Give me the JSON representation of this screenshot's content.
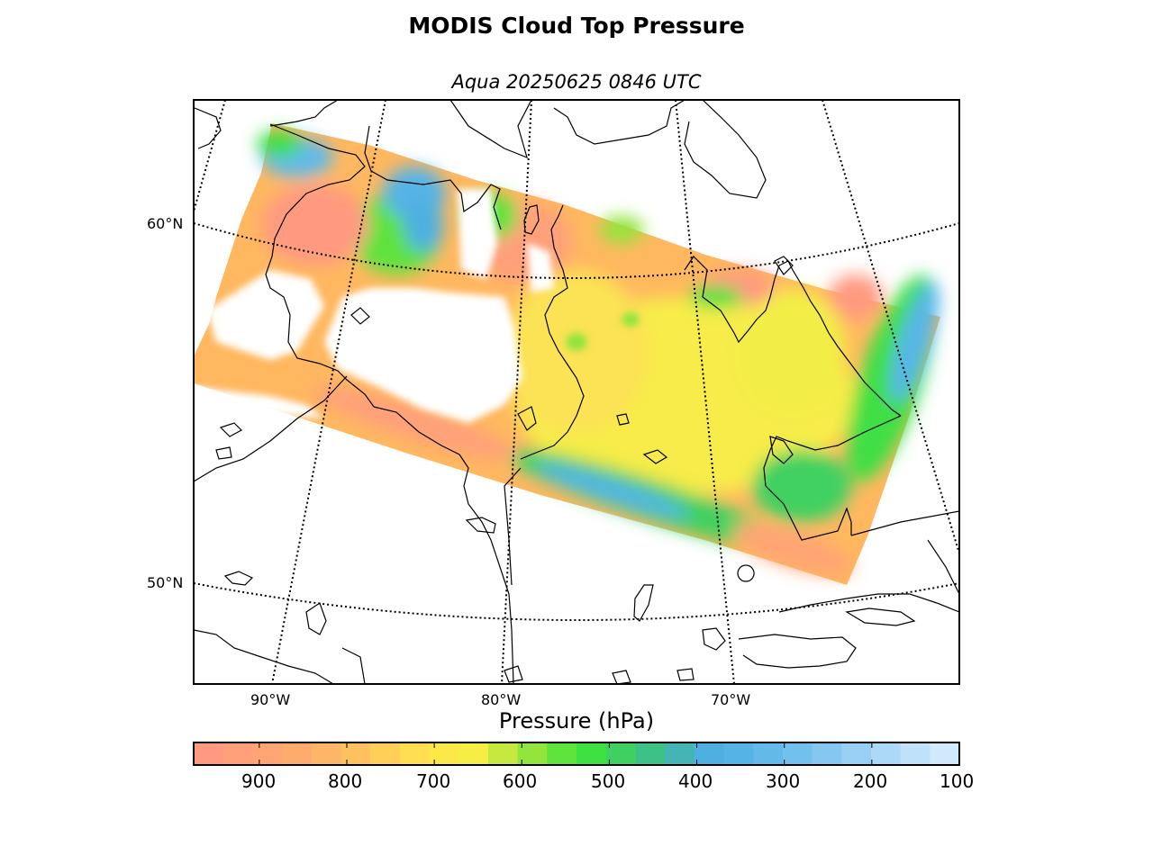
{
  "title": "MODIS Cloud Top Pressure",
  "subtitle": "Aqua 20250625 0846 UTC",
  "map": {
    "latitude_labels": [
      "60°N",
      "50°N"
    ],
    "longitude_labels": [
      "90°W",
      "80°W",
      "70°W"
    ],
    "colors": {
      "land_outline": "#000000",
      "graticule": "#000000",
      "no_data": "#ffffff"
    }
  },
  "colorbar": {
    "label": "Pressure (hPa)",
    "tick_labels": [
      "900",
      "800",
      "700",
      "600",
      "500",
      "400",
      "300",
      "200",
      "100"
    ],
    "range_hpa": [
      975,
      100
    ],
    "colors": [
      "#ff9a80",
      "#ffa07a",
      "#ffa574",
      "#ffab6e",
      "#ffb567",
      "#ffc160",
      "#ffcf58",
      "#ffdf50",
      "#fbe94a",
      "#f6ee44",
      "#c6e93f",
      "#93e43c",
      "#5ee23c",
      "#3fe042",
      "#3fd160",
      "#3dc187",
      "#45b4b5",
      "#4db0e0",
      "#56b3e6",
      "#62b9ea",
      "#72c0ee",
      "#84c8f1",
      "#97d0f4",
      "#acd9f7",
      "#bfe2fa",
      "#d0eafc"
    ]
  },
  "chart_data": {
    "type": "heatmap",
    "title": "MODIS Cloud Top Pressure",
    "subtitle": "Aqua 20250625 0846 UTC",
    "colorbar_label": "Pressure (hPa)",
    "colorbar_range": [
      975,
      100
    ],
    "colorbar_ticks": [
      900,
      800,
      700,
      600,
      500,
      400,
      300,
      200,
      100
    ],
    "latitude_ticks": [
      60,
      50
    ],
    "longitude_ticks": [
      -90,
      -80,
      -70
    ]
  }
}
